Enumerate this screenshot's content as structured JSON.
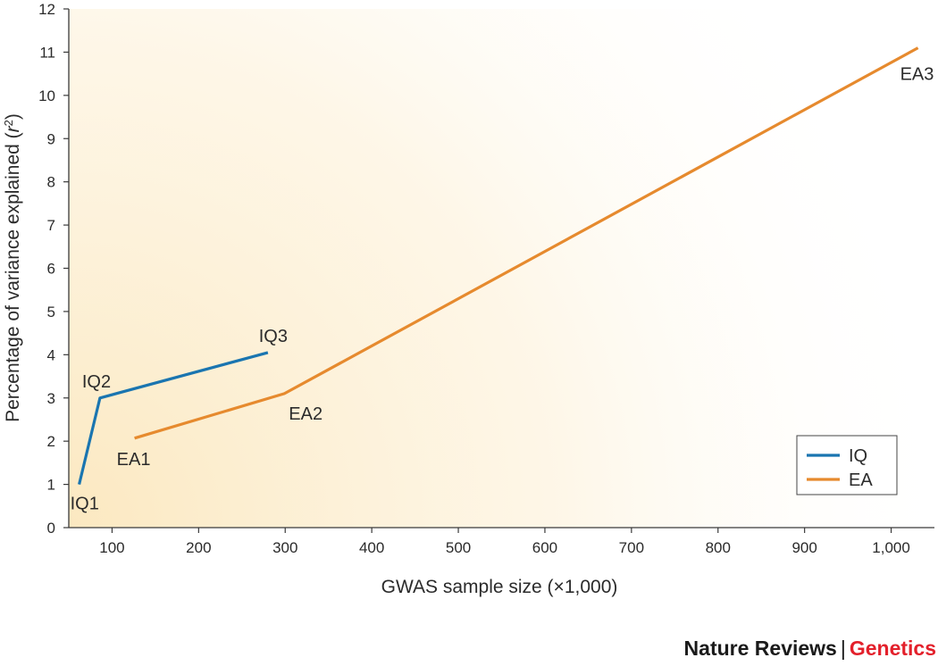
{
  "chart_data": {
    "type": "line",
    "xlabel": "GWAS sample size (×1,000)",
    "ylabel_prefix": "Percentage of variance  explained (",
    "ylabel_var": "r",
    "ylabel_sup": "2",
    "ylabel_suffix": ")",
    "xlim": [
      50,
      1050
    ],
    "ylim": [
      0,
      12
    ],
    "x_ticks": [
      100,
      200,
      300,
      400,
      500,
      600,
      700,
      800,
      900,
      1000
    ],
    "x_tick_labels": [
      "100",
      "200",
      "300",
      "400",
      "500",
      "600",
      "700",
      "800",
      "900",
      "1,000"
    ],
    "y_ticks": [
      0,
      1,
      2,
      3,
      4,
      5,
      6,
      7,
      8,
      9,
      10,
      11,
      12
    ],
    "y_tick_labels": [
      "0",
      "1",
      "2",
      "3",
      "4",
      "5",
      "6",
      "7",
      "8",
      "9",
      "10",
      "11",
      "12"
    ],
    "grid": false,
    "legend_position": "bottom-right",
    "series": [
      {
        "name": "IQ",
        "color": "#1a75b0",
        "points": [
          {
            "x": 62,
            "y": 1.0,
            "label": "IQ1"
          },
          {
            "x": 86,
            "y": 3.0,
            "label": "IQ2"
          },
          {
            "x": 280,
            "y": 4.05,
            "label": "IQ3"
          }
        ]
      },
      {
        "name": "EA",
        "color": "#e68a2e",
        "points": [
          {
            "x": 126,
            "y": 2.07,
            "label": "EA1"
          },
          {
            "x": 299,
            "y": 3.1,
            "label": "EA2"
          },
          {
            "x": 1031,
            "y": 11.1,
            "label": "EA3"
          }
        ]
      }
    ]
  },
  "footer": {
    "journal": "Nature Reviews",
    "separator": "|",
    "field": "Genetics"
  },
  "colors": {
    "axis": "#3a3a3a",
    "glow": "#fdf0d2",
    "footer_field": "#e3202b"
  }
}
